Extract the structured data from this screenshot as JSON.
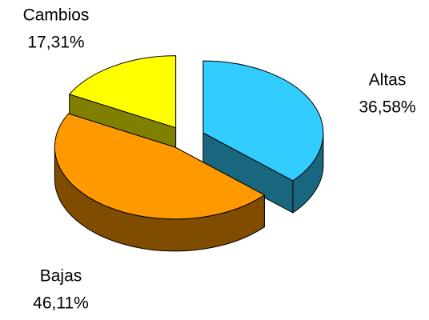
{
  "chart_data": {
    "type": "pie3d",
    "categories": [
      "Altas",
      "Bajas",
      "Cambios"
    ],
    "values": [
      36.58,
      46.11,
      17.31
    ],
    "value_labels": [
      "36,58%",
      "46,11%",
      "17,31%"
    ],
    "colors": [
      "#33ccff",
      "#ff9900",
      "#ffff00"
    ]
  }
}
